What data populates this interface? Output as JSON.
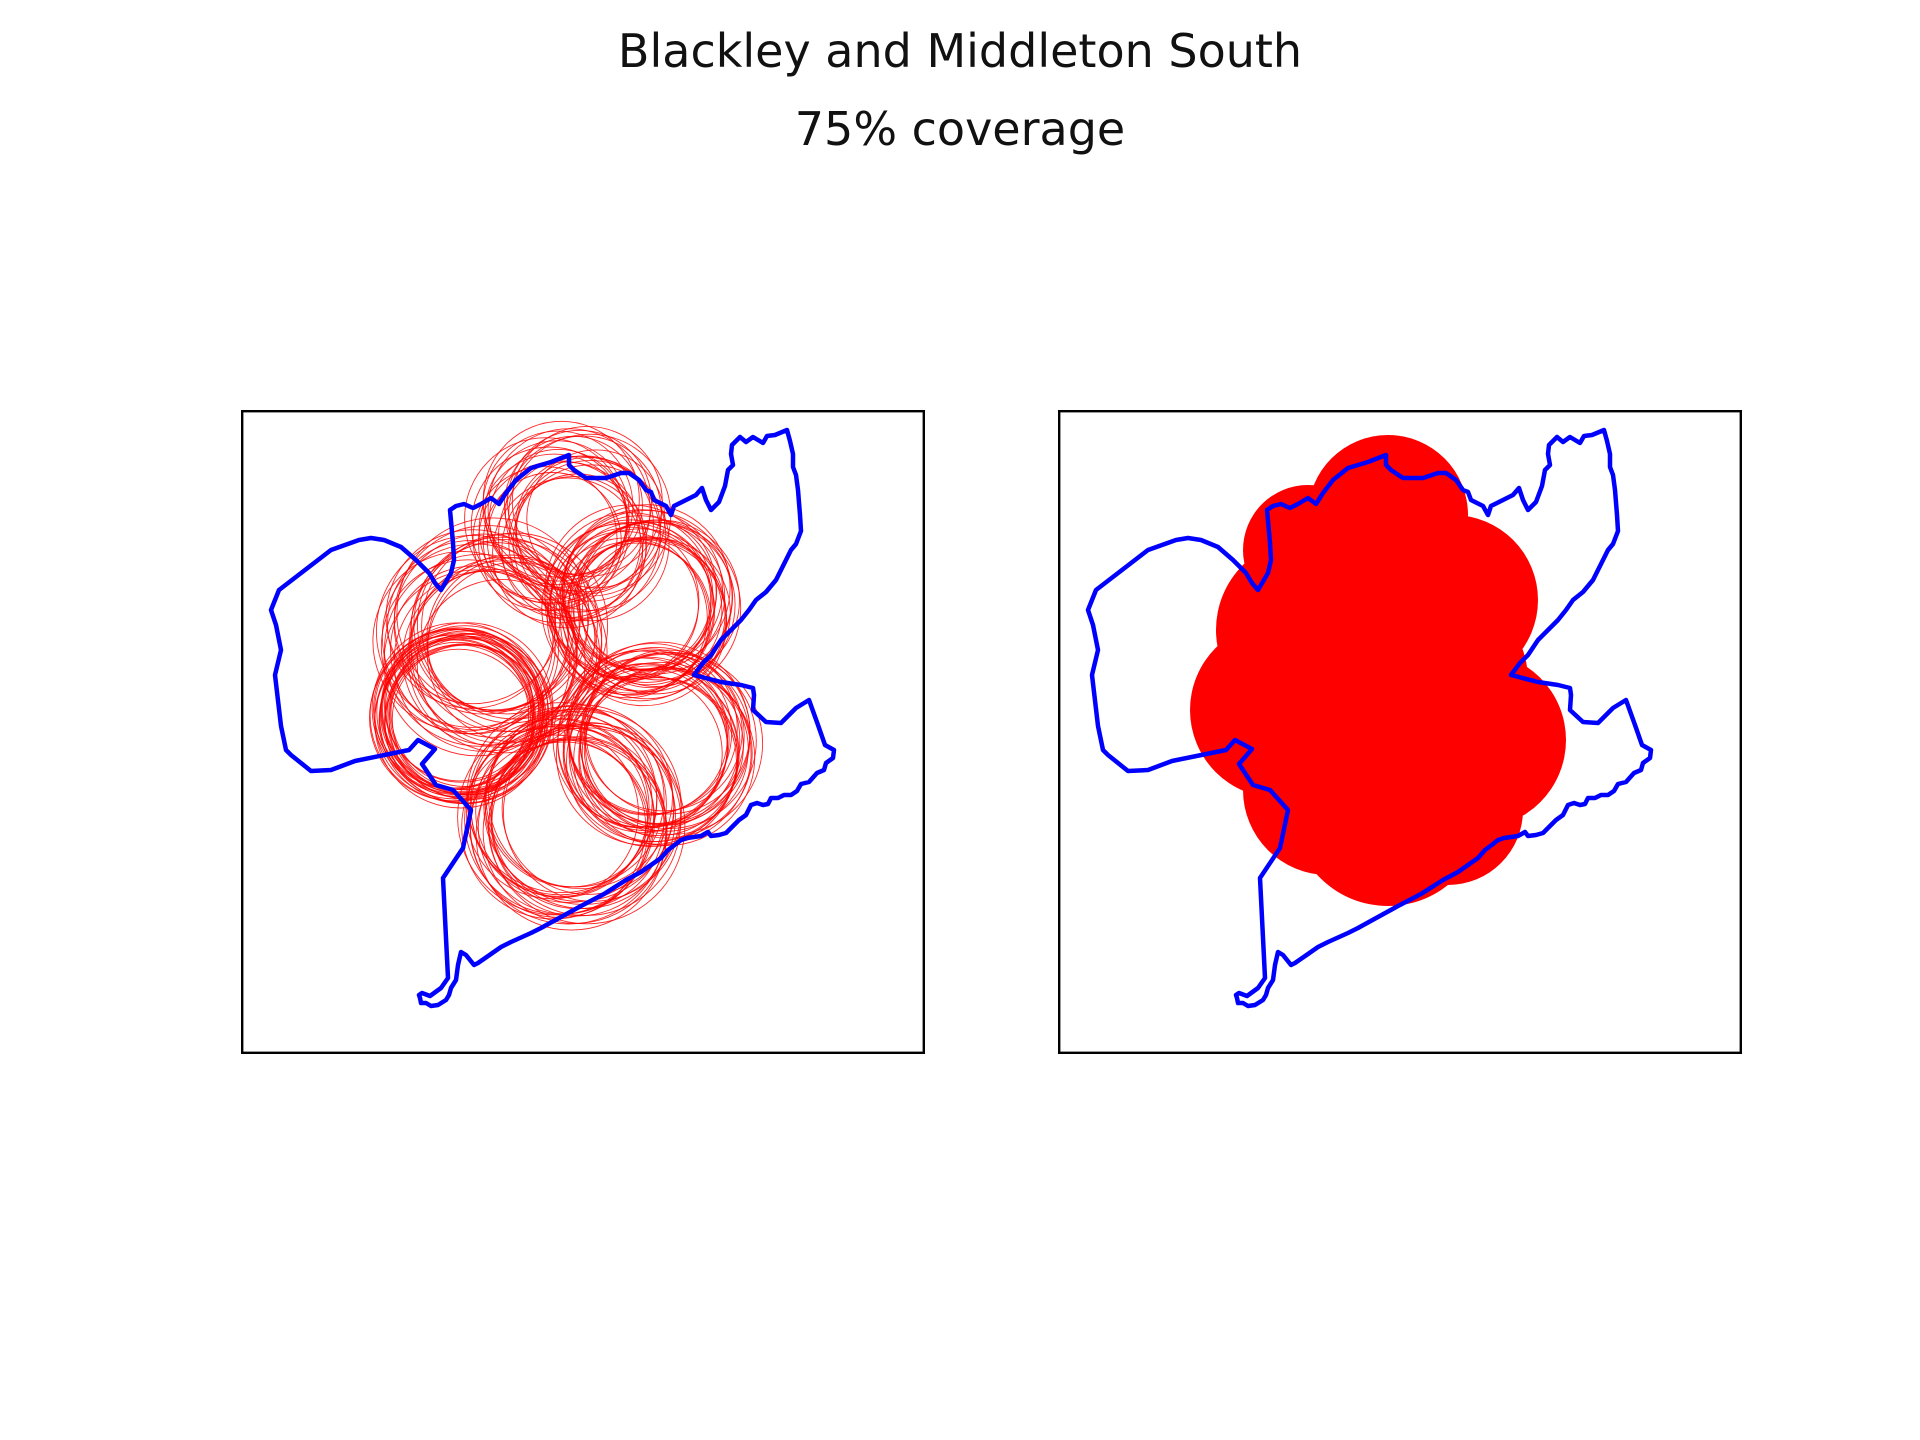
{
  "figure": {
    "title": "Blackley and Middleton South",
    "subtitle": "75% coverage"
  },
  "colors": {
    "boundary": "#0000ff",
    "coverage": "#ff0000",
    "frame": "#000000",
    "background": "#ffffff"
  },
  "panels": [
    {
      "style": "outline-circles"
    },
    {
      "style": "filled-union"
    }
  ]
}
